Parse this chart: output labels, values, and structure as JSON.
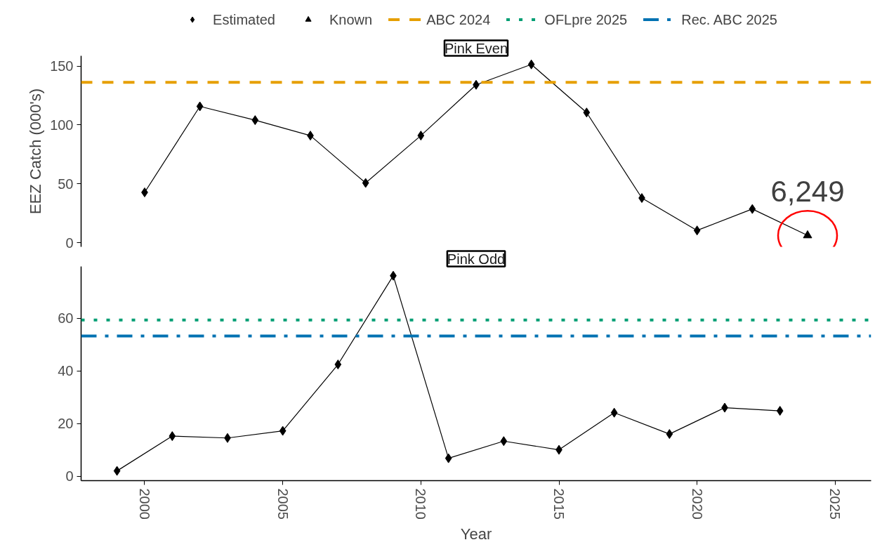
{
  "chart_data": [
    {
      "type": "line",
      "title": "Pink Even",
      "ylabel": "EEZ Catch (000's)",
      "xlim": [
        1997.7,
        2026.3
      ],
      "ylim": [
        -3.4,
        158.7
      ],
      "xticks": [
        2000,
        2005,
        2010,
        2015,
        2020,
        2025
      ],
      "yticks": [
        0,
        50,
        100,
        150
      ],
      "tick_labels": "y",
      "grid": false,
      "legend": "top",
      "series": [
        {
          "color": "#000000",
          "marker": "none",
          "x": [
            2000,
            2002,
            2004,
            2006,
            2008,
            2010,
            2012,
            2014,
            2016,
            2018,
            2020,
            2022,
            2024
          ],
          "values": [
            42.8,
            115.8,
            104.1,
            91.0,
            50.8,
            91.0,
            134.1,
            151.4,
            110.6,
            38.0,
            10.5,
            28.7,
            6.249
          ]
        },
        {
          "type": "scatter",
          "name": "Estimated",
          "color": "#000000",
          "marker": "diamond",
          "x": [
            2000,
            2002,
            2004,
            2006,
            2008,
            2010,
            2012,
            2014,
            2016,
            2018,
            2020,
            2022
          ],
          "values": [
            42.8,
            115.8,
            104.1,
            91.0,
            50.8,
            91.0,
            134.1,
            151.4,
            110.6,
            38.0,
            10.5,
            28.7
          ]
        },
        {
          "type": "scatter",
          "name": "Known",
          "color": "#000000",
          "marker": "triangle",
          "x": [
            2024
          ],
          "values": [
            6.249
          ]
        }
      ],
      "ref_lines": [
        {
          "axis": "y",
          "value": 136.2,
          "label": "ABC 2024",
          "color": "#e69f00",
          "line_style": "dashed"
        }
      ],
      "annotations": [
        {
          "text": "6,249",
          "x": 2024,
          "y": 6.249
        }
      ]
    },
    {
      "type": "line",
      "title": "Pink Odd",
      "xlabel": "Year",
      "xlim": [
        1997.7,
        2026.3
      ],
      "ylim": [
        -1.7,
        79.6
      ],
      "xticks": [
        2000,
        2005,
        2010,
        2015,
        2020,
        2025
      ],
      "yticks": [
        0,
        20,
        40,
        60
      ],
      "grid": false,
      "legend": "top",
      "series": [
        {
          "color": "#000000",
          "marker": "diamond",
          "x": [
            1999,
            2001,
            2003,
            2005,
            2007,
            2009,
            2011,
            2013,
            2015,
            2017,
            2019,
            2021,
            2023
          ],
          "values": [
            2.0,
            15.2,
            14.5,
            17.2,
            42.4,
            76.1,
            6.8,
            13.3,
            10.0,
            24.1,
            16.0,
            26.0,
            24.8
          ]
        }
      ],
      "ref_lines": [
        {
          "axis": "y",
          "value": 59.3,
          "label": "OFLpre 2025",
          "color": "#009e73",
          "line_style": "dotted"
        },
        {
          "axis": "y",
          "value": 53.2,
          "label": "Rec. ABC 2025",
          "color": "#0072b2",
          "line_style": "dotdash"
        }
      ]
    }
  ]
}
